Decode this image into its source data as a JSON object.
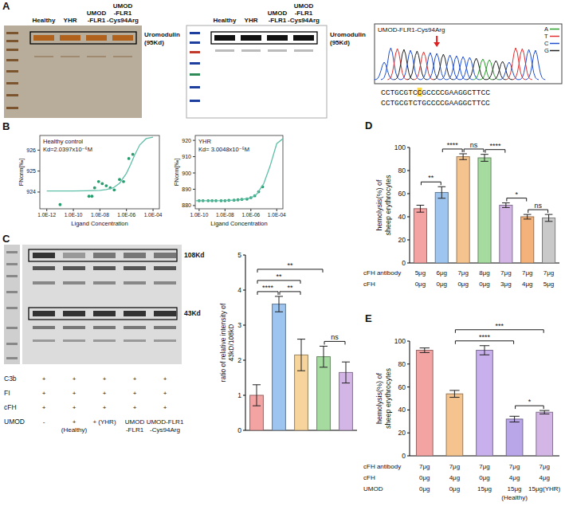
{
  "figure": {
    "panel_letters": [
      "A",
      "B",
      "C",
      "D",
      "E"
    ],
    "silver_stain": {
      "lanes": [
        "Healthy",
        "YHR",
        "UMOD-FLR1",
        "UMOD-FLR1-Cys94Arg"
      ],
      "band_label": "Uromodulin (95Kd)"
    },
    "western_blot": {
      "lanes": [
        "Healthy",
        "YHR",
        "UMOD-FLR1",
        "UMOD-FLR1-Cys94Arg"
      ],
      "band_label": "Uromodulin (95Kd)"
    },
    "chromatogram": {
      "title": "UMOD-FLR1-Cys94Arg",
      "legend": [
        {
          "label": "A",
          "color": "#2ca02c"
        },
        {
          "label": "T",
          "color": "#e03030"
        },
        {
          "label": "C",
          "color": "#2050d0"
        },
        {
          "label": "G",
          "color": "#222222"
        }
      ],
      "sequence_read": [
        "CCTGCGTC",
        "C",
        "GCCCCGAAGGCTTCC"
      ],
      "sequence_reference": "CCTGCGTCTGCCCCGAAGGCTTCC"
    },
    "c_gel": {
      "band_labels": [
        "108Kd",
        "43Kd"
      ],
      "rows": [
        {
          "label": "C3b",
          "values": [
            "+",
            "+",
            "+",
            "+",
            "+"
          ]
        },
        {
          "label": "FI",
          "values": [
            "+",
            "+",
            "+",
            "+",
            "+"
          ]
        },
        {
          "label": "cFH",
          "values": [
            "+",
            "+",
            "+",
            "+",
            "+"
          ]
        },
        {
          "label": "UMOD",
          "values": [
            "-",
            "+ (Healthy)",
            "+ (YHR)",
            "UMOD-FLR1",
            "UMOD-FLR1-Cys94Arg"
          ]
        }
      ]
    }
  },
  "chart_data": [
    {
      "type": "scatter",
      "log": "x",
      "xlabel": "Ligand Concentration",
      "ylabel": "FNorm[‰]",
      "annotations": [
        "Healthy control",
        "Kd=2.0397x10⁻⁶M"
      ],
      "xlim": [
        3e-13,
        0.0003
      ],
      "xticks": [
        {
          "value": 1e-12,
          "label": "1.0E-12"
        },
        {
          "value": 1e-10,
          "label": "1.0E-10"
        },
        {
          "value": 1e-08,
          "label": "1.0E-08"
        },
        {
          "value": 1e-06,
          "label": "1.0E-06"
        },
        {
          "value": 0.0001,
          "label": "1.0E-04"
        }
      ],
      "ylim": [
        923.2,
        926.7
      ],
      "yticks": [
        924,
        925,
        926
      ],
      "series": [
        {
          "type": "scatter",
          "marker": "circle",
          "color": "#2a9d6f",
          "x": [
            1e-11,
            1.5e-09,
            2.5e-09,
            4e-09,
            8e-09,
            1.5e-08,
            3e-08,
            6e-08,
            1.2e-07,
            3e-07,
            6e-07,
            1.5e-06,
            3e-06
          ],
          "values": [
            923.4,
            923.8,
            923.8,
            924.2,
            924.5,
            924.4,
            924.3,
            924.2,
            924.1,
            924.6,
            924.5,
            925.6,
            925.8
          ]
        },
        {
          "type": "line",
          "color": "#5fbfa8",
          "x": [
            1e-12,
            1e-10,
            1e-09,
            1e-08,
            3e-08,
            1e-07,
            3e-07,
            1e-06,
            2e-06,
            4e-06,
            1e-05,
            3e-05,
            0.0001
          ],
          "values": [
            924.05,
            924.05,
            924.06,
            924.08,
            924.12,
            924.2,
            924.42,
            924.9,
            925.3,
            925.75,
            926.25,
            926.55,
            926.62
          ]
        }
      ]
    },
    {
      "type": "scatter",
      "log": "x",
      "xlabel": "Ligand Concentration",
      "ylabel": "FNorm[‰]",
      "annotations": [
        "YHR",
        "Kd= 3.0048x10⁻⁵M"
      ],
      "xlim": [
        5e-11,
        0.0003
      ],
      "xticks": [
        {
          "value": 1e-10,
          "label": "1.0E-10"
        },
        {
          "value": 1e-08,
          "label": "1.0E-08"
        },
        {
          "value": 1e-06,
          "label": "1.0E-06"
        },
        {
          "value": 0.0001,
          "label": "1.0E-04"
        }
      ],
      "ylim": [
        878,
        923
      ],
      "yticks": [
        880,
        890,
        900,
        910,
        920
      ],
      "series": [
        {
          "type": "scatter",
          "marker": "circle",
          "color": "#2a9d6f",
          "x": [
            1e-10,
            2e-10,
            5e-10,
            1e-09,
            2e-09,
            5e-09,
            1e-08,
            2e-08,
            5e-08,
            1e-07,
            2e-07,
            5e-07,
            1e-06,
            2e-06,
            4e-06,
            8e-06
          ],
          "values": [
            883,
            883,
            883,
            883,
            883,
            883,
            883,
            883.2,
            883.3,
            883.5,
            883.8,
            884,
            884.8,
            886,
            888.5,
            891.5
          ]
        },
        {
          "type": "line",
          "color": "#5fbfa8",
          "x": [
            5e-11,
            1e-09,
            1e-08,
            1e-07,
            1e-06,
            3e-06,
            1e-05,
            3e-05,
            0.0001,
            0.0003
          ],
          "values": [
            883,
            883,
            883.1,
            883.4,
            884.6,
            887.2,
            893.5,
            904,
            918,
            921
          ]
        }
      ]
    },
    {
      "type": "bar",
      "ylabel": "ratio of relative intensity of 43kD/108kD",
      "categories": [
        null,
        null,
        null,
        null,
        null
      ],
      "values": [
        1.0,
        3.6,
        2.15,
        2.1,
        1.65
      ],
      "errors": [
        0.3,
        0.22,
        0.45,
        0.3,
        0.3
      ],
      "colors": [
        "#f4a3a3",
        "#9ec5ef",
        "#f7d49b",
        "#a6dba0",
        "#d3b6e6"
      ],
      "ylim": [
        0,
        5
      ],
      "yticks": [
        0,
        1,
        2,
        3,
        4,
        5
      ],
      "tick_labels": "y",
      "significance": [
        {
          "from": 0,
          "to": 1,
          "label": "****"
        },
        {
          "from": 1,
          "to": 2,
          "label": "**"
        },
        {
          "from": 3,
          "to": 4,
          "label": "ns"
        },
        {
          "from": 0,
          "to": 2,
          "label": "**"
        },
        {
          "from": 0,
          "to": 3,
          "label": "**"
        }
      ]
    },
    {
      "type": "bar",
      "ylabel": "hemolysis(%) of sheep erythrocytes",
      "categories": [
        null,
        null,
        null,
        null,
        null,
        null,
        null
      ],
      "values": [
        47,
        61,
        92,
        91,
        50,
        40,
        39
      ],
      "errors": [
        3,
        5,
        2.5,
        3,
        2,
        2,
        3
      ],
      "colors": [
        "#f4a3a3",
        "#9ec5ef",
        "#f5c48e",
        "#a6dba0",
        "#d3b6e6",
        "#f3b27a",
        "#c9c9c9"
      ],
      "ylim": [
        0,
        100
      ],
      "yticks": [
        0,
        20,
        40,
        60,
        80,
        100
      ],
      "tick_labels": "y",
      "significance": [
        {
          "from": 0,
          "to": 1,
          "label": "**"
        },
        {
          "from": 1,
          "to": 2,
          "label": "****"
        },
        {
          "from": 2,
          "to": 3,
          "label": "ns"
        },
        {
          "from": 3,
          "to": 4,
          "label": "****"
        },
        {
          "from": 4,
          "to": 5,
          "label": "*"
        },
        {
          "from": 5,
          "to": 6,
          "label": "ns"
        }
      ],
      "conditions": [
        {
          "label": "cFH antibody",
          "values": [
            "5μg",
            "6μg",
            "7μg",
            "8μg",
            "7μg",
            "7μg",
            "7μg"
          ]
        },
        {
          "label": "cFH",
          "values": [
            "0μg",
            "0μg",
            "0μg",
            "0μg",
            "3μg",
            "4μg",
            "5μg"
          ]
        }
      ]
    },
    {
      "type": "bar",
      "ylabel": "hemolysis(%) of sheep erythrocytes",
      "categories": [
        null,
        null,
        null,
        null,
        null
      ],
      "values": [
        92,
        54,
        92,
        32,
        38
      ],
      "errors": [
        2,
        3,
        4,
        2.5,
        1.5
      ],
      "colors": [
        "#f4a3a3",
        "#f5c48e",
        "#c7b0ec",
        "#b9a6e8",
        "#d3b6e6"
      ],
      "ylim": [
        0,
        100
      ],
      "yticks": [
        0,
        20,
        40,
        60,
        80,
        100
      ],
      "tick_labels": "y",
      "significance": [
        {
          "from": 3,
          "to": 4,
          "label": "*"
        },
        {
          "from": 1,
          "to": 3,
          "label": "****"
        },
        {
          "from": 1,
          "to": 4,
          "label": "***"
        }
      ],
      "conditions": [
        {
          "label": "cFH antibody",
          "values": [
            "7μg",
            "7μg",
            "7μg",
            "7μg",
            "7μg"
          ]
        },
        {
          "label": "cFH",
          "values": [
            "0μg",
            "4μg",
            "0μg",
            "4μg",
            "4μg"
          ]
        },
        {
          "label": "UMOD",
          "values": [
            "0μg",
            "0μg",
            "15μg",
            "15μg (Healthy)",
            "15μg(YHR)"
          ]
        }
      ]
    }
  ]
}
